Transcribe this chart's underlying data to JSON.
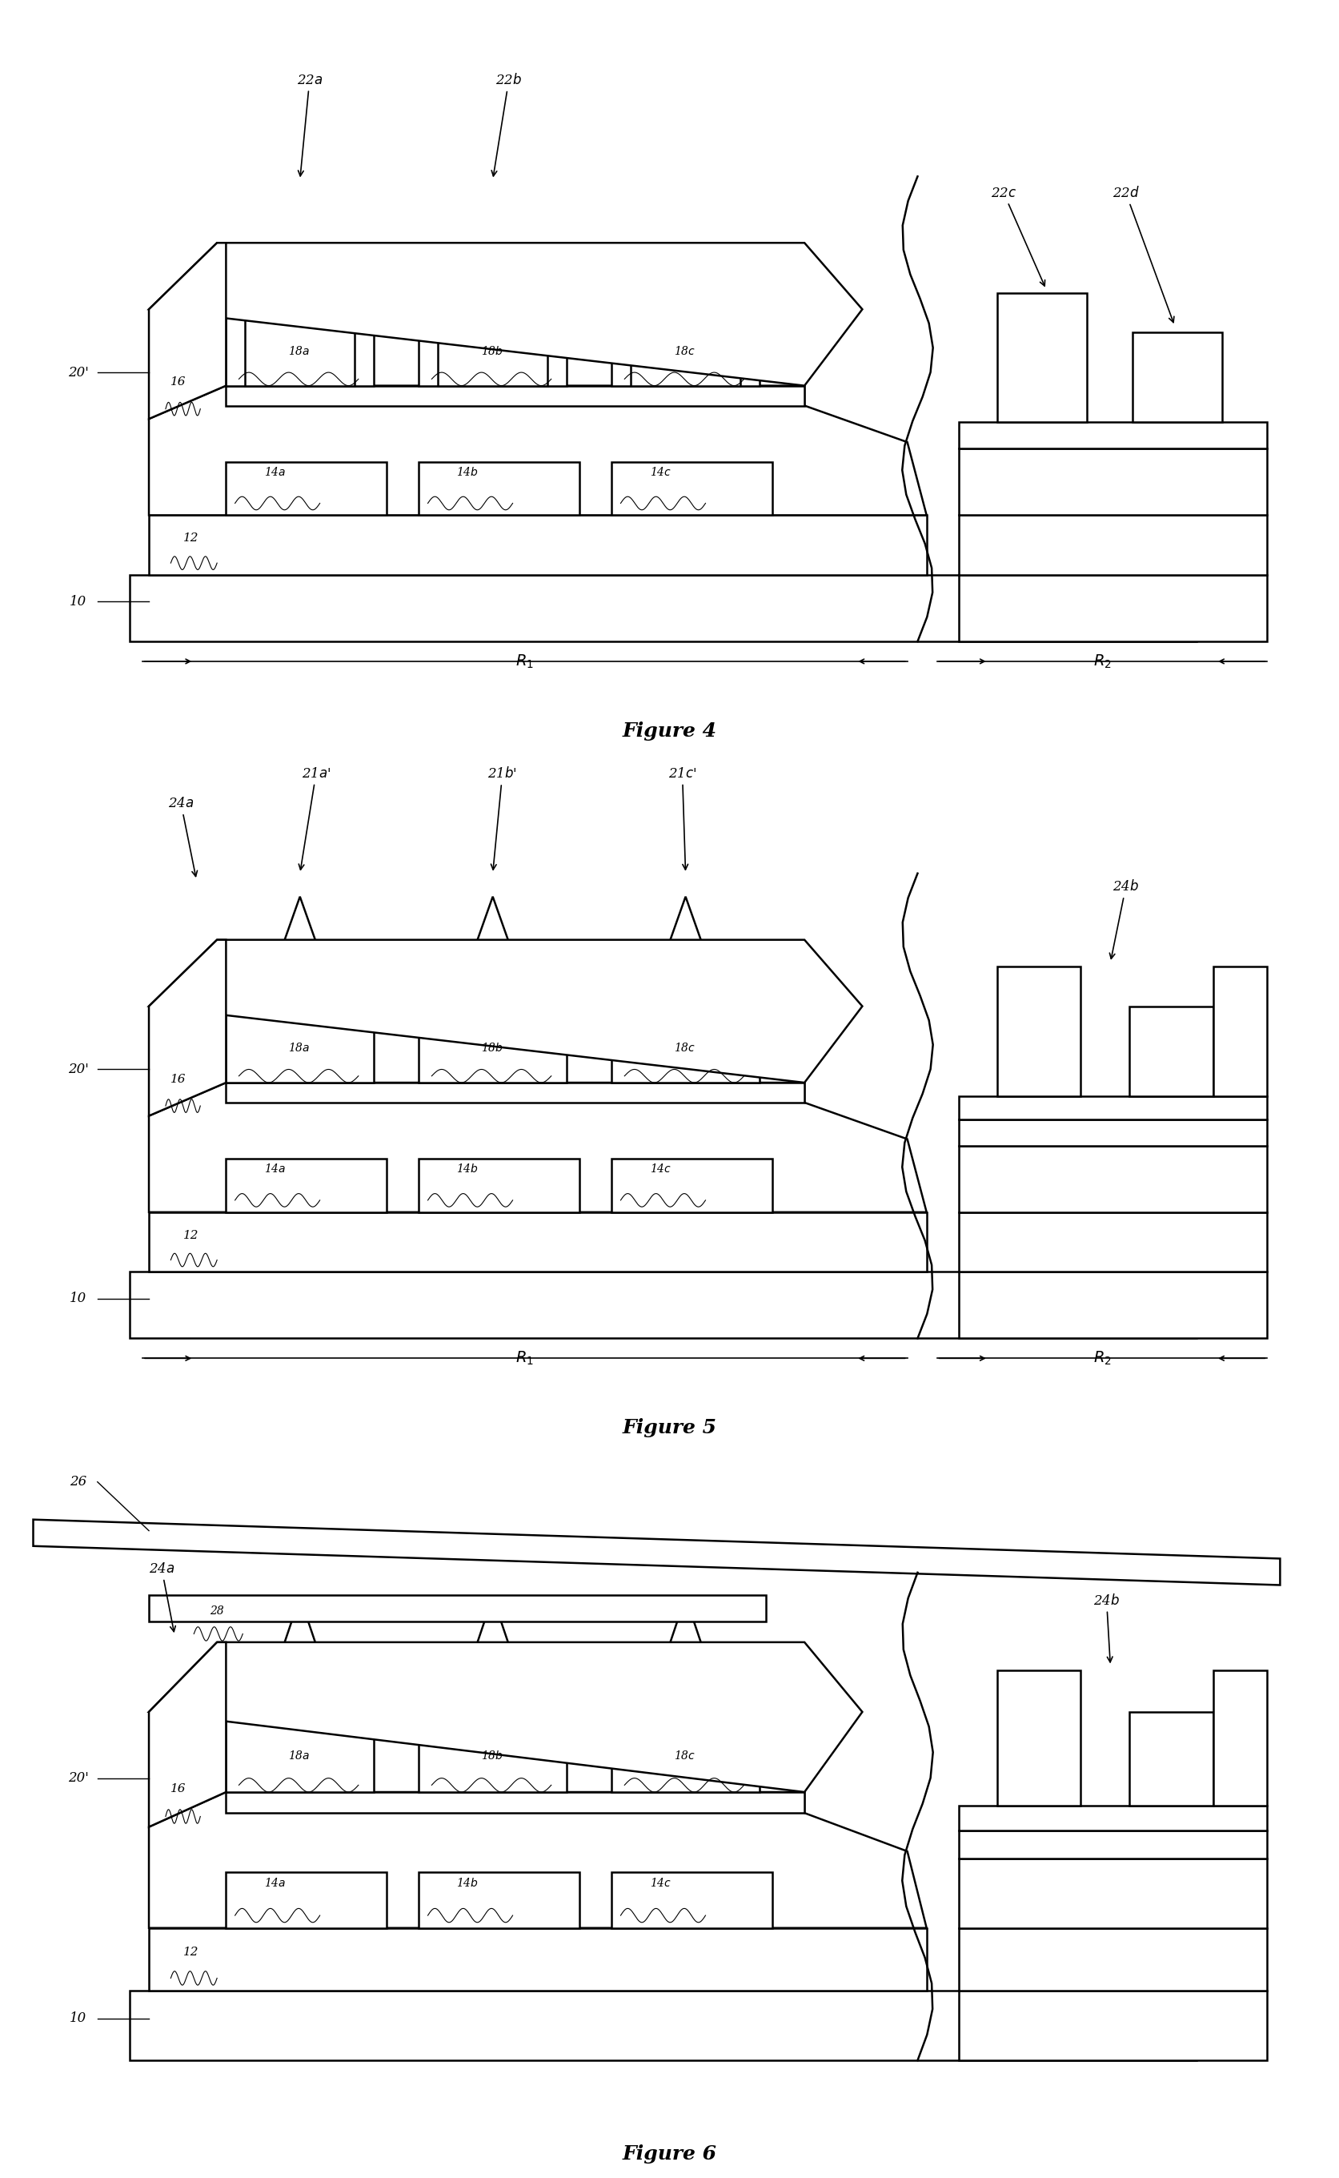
{
  "lw": 1.8,
  "bg": "#ffffff",
  "fg": "#000000",
  "fig4_title": "Figure 4",
  "fig5_title": "Figure 5",
  "fig6_title": "Figure 6"
}
